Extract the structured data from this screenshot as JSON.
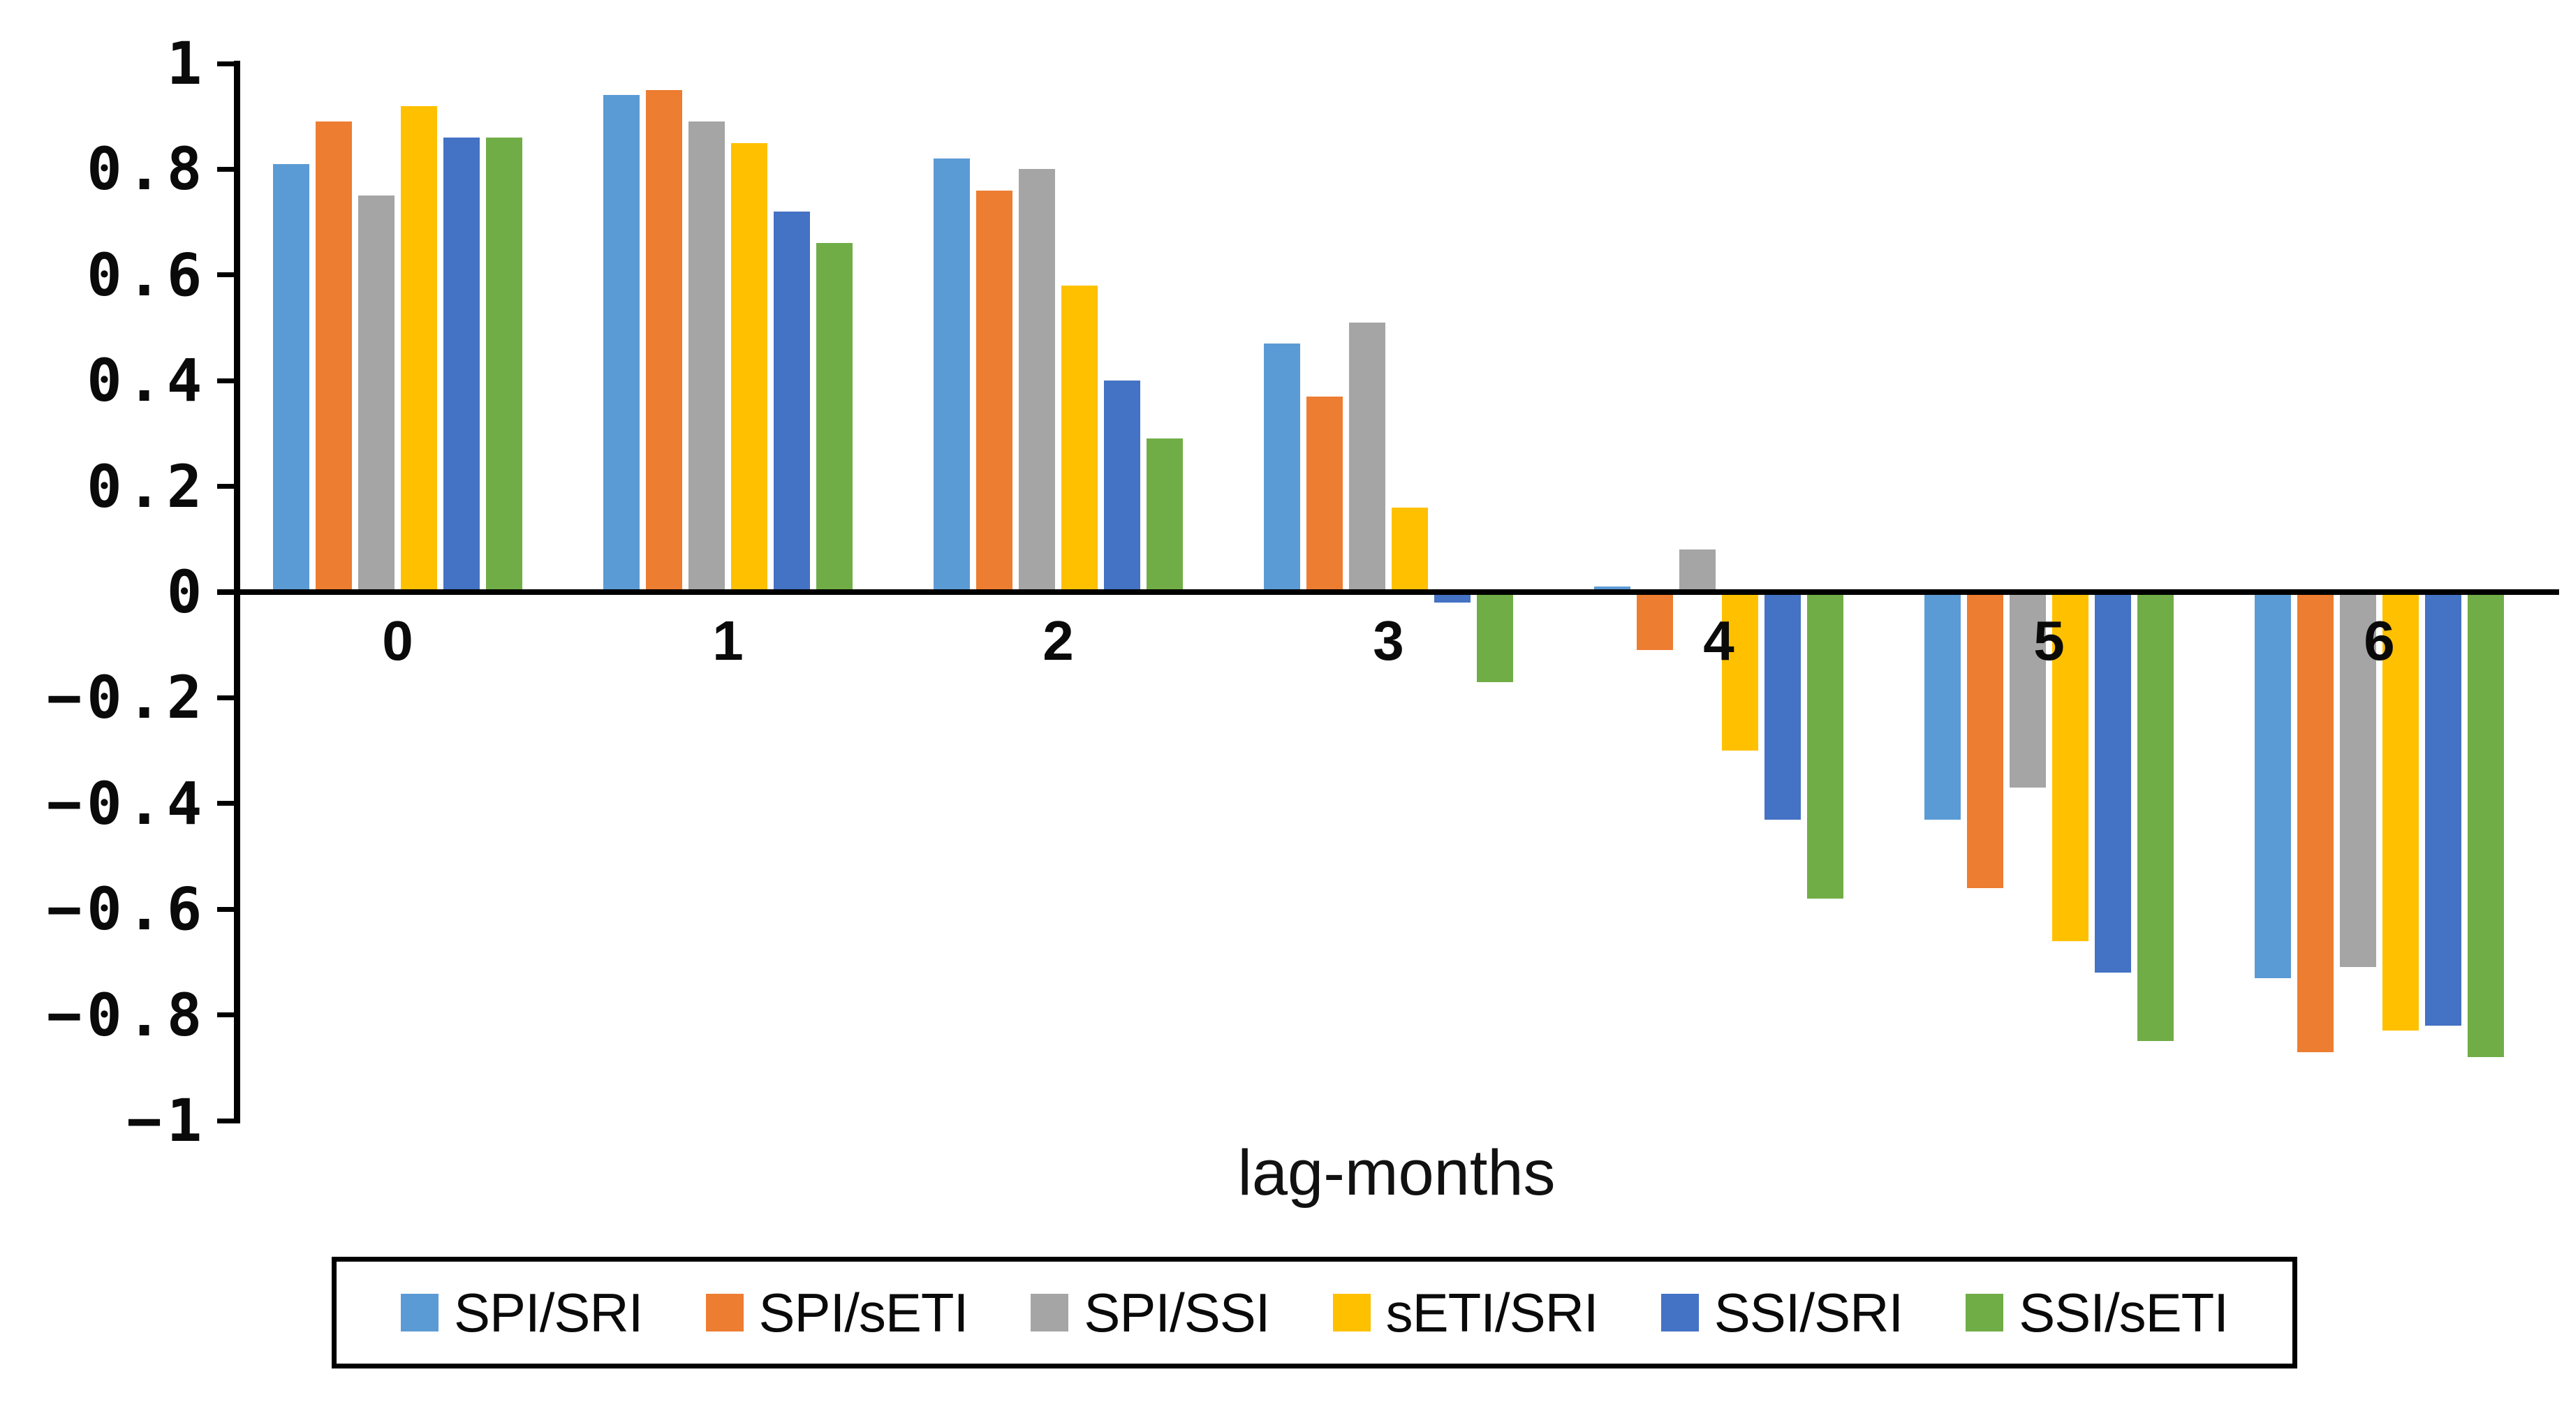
{
  "chart_data": {
    "type": "bar",
    "title": "",
    "xlabel": "lag-months",
    "ylabel": "",
    "categories": [
      "0",
      "1",
      "2",
      "3",
      "4",
      "5",
      "6"
    ],
    "series": [
      {
        "name": "SPI/SRI",
        "color": "#5B9BD5",
        "values": [
          0.81,
          0.94,
          0.82,
          0.47,
          0.01,
          -0.43,
          -0.73
        ]
      },
      {
        "name": "SPI/sETI",
        "color": "#ED7D31",
        "values": [
          0.89,
          0.95,
          0.76,
          0.37,
          -0.11,
          -0.56,
          -0.87
        ]
      },
      {
        "name": "SPI/SSI",
        "color": "#A5A5A5",
        "values": [
          0.75,
          0.89,
          0.8,
          0.51,
          0.08,
          -0.37,
          -0.71
        ]
      },
      {
        "name": "sETI/SRI",
        "color": "#FFC000",
        "values": [
          0.92,
          0.85,
          0.58,
          0.16,
          -0.3,
          -0.66,
          -0.83
        ]
      },
      {
        "name": "SSI/SRI",
        "color": "#4472C4",
        "values": [
          0.86,
          0.72,
          0.4,
          -0.02,
          -0.43,
          -0.72,
          -0.82
        ]
      },
      {
        "name": "SSI/sETI",
        "color": "#70AD47",
        "values": [
          0.86,
          0.66,
          0.29,
          -0.17,
          -0.58,
          -0.85,
          -0.88
        ]
      }
    ],
    "ylim": [
      -1,
      1
    ],
    "yticks": [
      {
        "label": "1",
        "value": 1.0
      },
      {
        "label": "0.8",
        "value": 0.8
      },
      {
        "label": "0.6",
        "value": 0.6
      },
      {
        "label": "0.4",
        "value": 0.4
      },
      {
        "label": "0.2",
        "value": 0.2
      },
      {
        "label": "0",
        "value": 0.0
      },
      {
        "label": "−0.2",
        "value": -0.2
      },
      {
        "label": "−0.4",
        "value": -0.4
      },
      {
        "label": "−0.6",
        "value": -0.6
      },
      {
        "label": "−0.8",
        "value": -0.8
      },
      {
        "label": "−1",
        "value": -1.0
      }
    ],
    "grid": false,
    "legend_position": "bottom",
    "axis_color": "#000000",
    "background_color": "#ffffff"
  }
}
